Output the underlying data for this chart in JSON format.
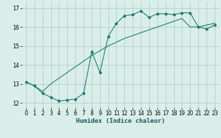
{
  "xlabel": "Humidex (Indice chaleur)",
  "xlim": [
    -0.5,
    23.5
  ],
  "ylim": [
    11.75,
    17.35
  ],
  "yticks": [
    12,
    13,
    14,
    15,
    16,
    17
  ],
  "xticks": [
    0,
    1,
    2,
    3,
    4,
    5,
    6,
    7,
    8,
    9,
    10,
    11,
    12,
    13,
    14,
    15,
    16,
    17,
    18,
    19,
    20,
    21,
    22,
    23
  ],
  "bg_color": "#daeee9",
  "grid_color": "#b0ceca",
  "line_color": "#1a7a6e",
  "line1_x": [
    0,
    1,
    2,
    3,
    4,
    5,
    6,
    7,
    8,
    9,
    10,
    11,
    12,
    13,
    14,
    15,
    16,
    17,
    18,
    19,
    20,
    21,
    22,
    23
  ],
  "line1_y": [
    13.1,
    12.9,
    12.5,
    12.3,
    12.1,
    12.15,
    12.2,
    12.5,
    14.7,
    13.6,
    15.5,
    16.2,
    16.6,
    16.65,
    16.85,
    16.5,
    16.7,
    16.7,
    16.65,
    16.75,
    16.75,
    16.0,
    15.9,
    16.1
  ],
  "line2_x": [
    0,
    1,
    2,
    3,
    4,
    5,
    6,
    7,
    8,
    9,
    10,
    11,
    12,
    13,
    14,
    15,
    16,
    17,
    18,
    19,
    20,
    21,
    22,
    23
  ],
  "line2_y": [
    13.1,
    12.9,
    12.6,
    13.0,
    13.3,
    13.6,
    13.9,
    14.2,
    14.5,
    14.75,
    15.0,
    15.2,
    15.4,
    15.55,
    15.7,
    15.85,
    16.0,
    16.15,
    16.3,
    16.45,
    16.0,
    16.0,
    16.1,
    16.2
  ],
  "xlabel_fontsize": 6.5,
  "tick_fontsize": 5.5
}
